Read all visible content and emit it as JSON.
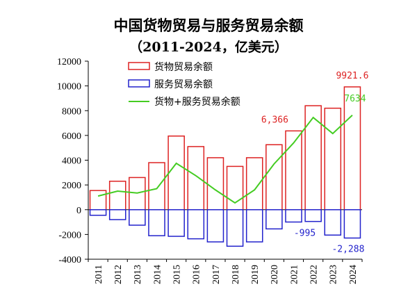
{
  "chart_data": {
    "type": "bar",
    "title": "中国货物贸易与服务贸易余额",
    "subtitle": "（2011-2024，亿美元）",
    "categories": [
      "2011",
      "2012",
      "2013",
      "2014",
      "2015",
      "2016",
      "2017",
      "2018",
      "2019",
      "2020",
      "2021",
      "2022",
      "2023",
      "2024"
    ],
    "series": [
      {
        "name": "货物贸易余额",
        "kind": "bar",
        "color": "#dd2222",
        "values": [
          1550,
          2300,
          2600,
          3800,
          5950,
          5100,
          4200,
          3500,
          4200,
          5250,
          6366,
          8400,
          8200,
          9921.6
        ]
      },
      {
        "name": "服务贸易余额",
        "kind": "bar",
        "color": "#2222cc",
        "values": [
          -450,
          -800,
          -1250,
          -2100,
          -2150,
          -2350,
          -2600,
          -2950,
          -2600,
          -1550,
          -995,
          -950,
          -2050,
          -2288
        ]
      },
      {
        "name": "货物+服务贸易余额",
        "kind": "line",
        "color": "#44cc22",
        "values": [
          1100,
          1500,
          1350,
          1700,
          3750,
          2750,
          1600,
          550,
          1600,
          3700,
          5400,
          7450,
          6150,
          7634
        ]
      }
    ],
    "ylim": [
      -4000,
      12000
    ],
    "yticks": [
      -4000,
      -2000,
      0,
      2000,
      4000,
      6000,
      8000,
      10000,
      12000
    ],
    "data_labels": [
      {
        "text": "9921.6",
        "color": "#dd2222"
      },
      {
        "text": "6,366",
        "color": "#dd2222"
      },
      {
        "text": "7634",
        "color": "#44cc22"
      },
      {
        "text": "-995",
        "color": "#2222cc"
      },
      {
        "text": "-2,288",
        "color": "#2222cc"
      }
    ],
    "legend_position": "top-left",
    "grid": false
  }
}
